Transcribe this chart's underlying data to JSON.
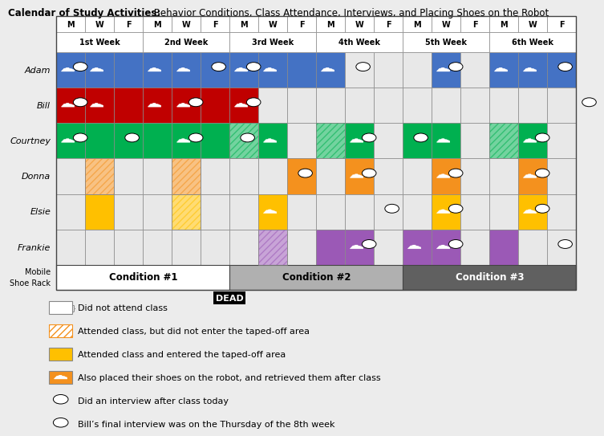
{
  "title_bold": "Calendar of Study Activities:",
  "title_regular": " Behavior Conditions, Class Attendance, Interviews, and Placing Shoes on the Robot",
  "weeks": [
    "1st Week",
    "2nd Week",
    "3rd Week",
    "4th Week",
    "5th Week",
    "6th Week"
  ],
  "days": [
    "M",
    "W",
    "F"
  ],
  "participants": [
    "Adam",
    "Bill",
    "Courtney",
    "Donna",
    "Elsie",
    "Frankie"
  ],
  "color_map": {
    "blue": "#4472C4",
    "red": "#C00000",
    "green": "#00B050",
    "orange": "#F4911E",
    "yellow": "#FFC000",
    "purple": "#9B59B6"
  },
  "conditions": [
    {
      "label": "Condition #1",
      "cols": [
        0,
        6
      ],
      "fc": "#FFFFFF",
      "tc": "black"
    },
    {
      "label": "Condition #2",
      "cols": [
        6,
        12
      ],
      "fc": "#B0B0B0",
      "tc": "black"
    },
    {
      "label": "Condition #3",
      "cols": [
        12,
        18
      ],
      "fc": "#606060",
      "tc": "white"
    }
  ],
  "legend_items": [
    {
      "type": "blank",
      "label": "Did not attend class"
    },
    {
      "type": "hatch",
      "label": "Attended class, but did not enter the taped-off area"
    },
    {
      "type": "yellow",
      "label": "Attended class and entered the taped-off area"
    },
    {
      "type": "shoe",
      "label": "Also placed their shoes on the robot, and retrieved them after class"
    },
    {
      "type": "speech",
      "label": "Did an interview after class today"
    },
    {
      "type": "speech2",
      "label": "Bill’s final interview was on the Thursday of the 8th week"
    }
  ]
}
